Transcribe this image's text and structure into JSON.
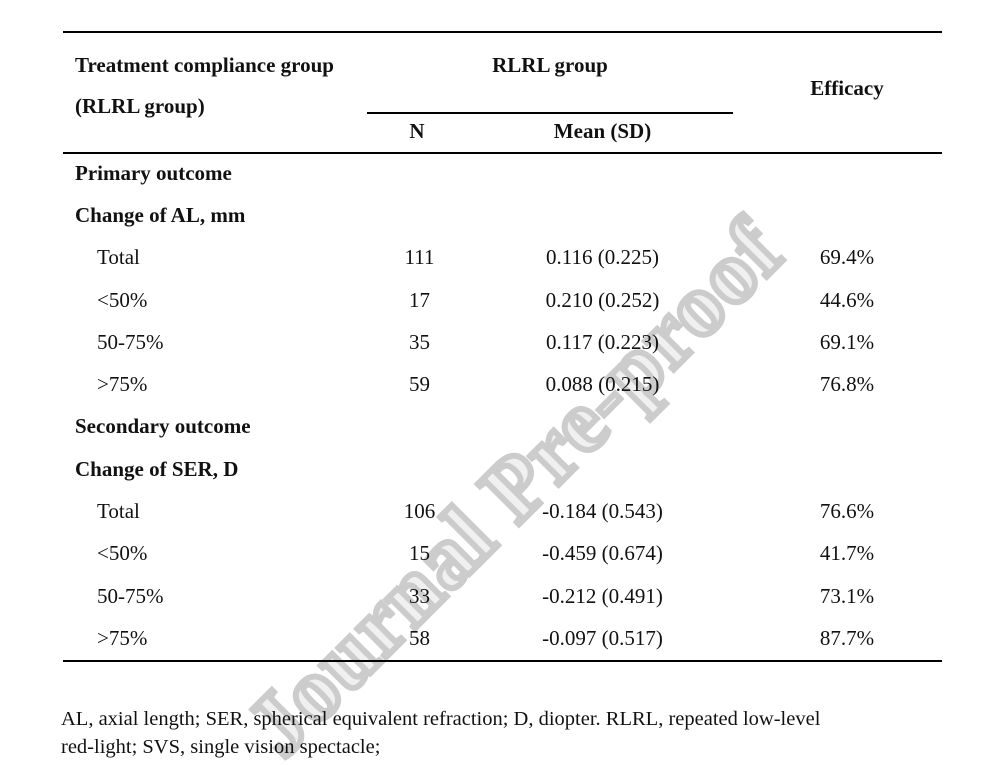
{
  "watermark": {
    "text": "Journal Pre-proof"
  },
  "table": {
    "header": {
      "row_group_title_line1": "Treatment compliance group",
      "row_group_title_line2": "(RLRL group)",
      "span_header": "RLRL group",
      "col_n": "N",
      "col_mean": "Mean (SD)",
      "col_efficacy": "Efficacy"
    },
    "rows": [
      {
        "type": "section",
        "label": "Primary outcome"
      },
      {
        "type": "section",
        "label": "Change of AL, mm"
      },
      {
        "type": "data",
        "label": "Total",
        "n": "111",
        "mean_sd": "0.116 (0.225)",
        "efficacy": "69.4%"
      },
      {
        "type": "data",
        "label": "<50%",
        "n": "17",
        "mean_sd": "0.210 (0.252)",
        "efficacy": "44.6%"
      },
      {
        "type": "data",
        "label": "50-75%",
        "n": "35",
        "mean_sd": "0.117 (0.223)",
        "efficacy": "69.1%"
      },
      {
        "type": "data",
        "label": ">75%",
        "n": "59",
        "mean_sd": "0.088 (0.215)",
        "efficacy": "76.8%"
      },
      {
        "type": "section",
        "label": "Secondary outcome"
      },
      {
        "type": "section",
        "label": "Change of SER, D"
      },
      {
        "type": "data",
        "label": "Total",
        "n": "106",
        "mean_sd": "-0.184 (0.543)",
        "efficacy": "76.6%"
      },
      {
        "type": "data",
        "label": "<50%",
        "n": "15",
        "mean_sd": "-0.459 (0.674)",
        "efficacy": "41.7%"
      },
      {
        "type": "data",
        "label": "50-75%",
        "n": "33",
        "mean_sd": "-0.212 (0.491)",
        "efficacy": "73.1%"
      },
      {
        "type": "data",
        "label": ">75%",
        "n": "58",
        "mean_sd": "-0.097 (0.517)",
        "efficacy": "87.7%"
      }
    ]
  },
  "footnote": {
    "line1": "AL, axial length; SER, spherical equivalent refraction; D, diopter. RLRL, repeated low-level",
    "line2": "red-light; SVS, single vision spectacle;"
  },
  "colors": {
    "text": "#111111",
    "rule": "#000000",
    "watermark_stroke": "#cccccc"
  }
}
